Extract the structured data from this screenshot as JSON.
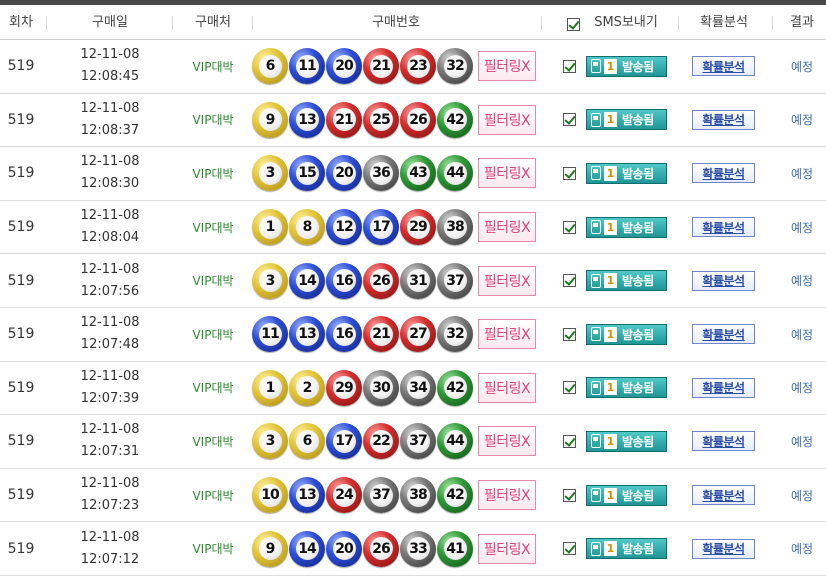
{
  "header": {
    "round": "회차",
    "purchase_date": "구매일",
    "store": "구매처",
    "numbers": "구매번호",
    "sms": "SMS보내기",
    "analysis": "확률분석",
    "result": "결과"
  },
  "colors": {
    "yellow": "#e3c43a",
    "blue": "#2e4fd6",
    "red": "#d62e2e",
    "gray": "#7a7a7a",
    "green": "#2f9a37",
    "store_text": "#2e8b2e",
    "filter_text": "#e0407a",
    "sent_button": "#1f9595"
  },
  "rows": [
    {
      "round": "519",
      "date": "12-11-08",
      "time": "12:08:45",
      "store": "VIP대박",
      "numbers": [
        {
          "n": "6",
          "c": "yellow"
        },
        {
          "n": "11",
          "c": "blue"
        },
        {
          "n": "20",
          "c": "blue"
        },
        {
          "n": "21",
          "c": "red"
        },
        {
          "n": "23",
          "c": "red"
        },
        {
          "n": "32",
          "c": "gray"
        }
      ],
      "filter": "필터링X",
      "sms_count": "1",
      "sms_status": "발송됨",
      "analysis": "확률분석",
      "result": "예정"
    },
    {
      "round": "519",
      "date": "12-11-08",
      "time": "12:08:37",
      "store": "VIP대박",
      "numbers": [
        {
          "n": "9",
          "c": "yellow"
        },
        {
          "n": "13",
          "c": "blue"
        },
        {
          "n": "21",
          "c": "red"
        },
        {
          "n": "25",
          "c": "red"
        },
        {
          "n": "26",
          "c": "red"
        },
        {
          "n": "42",
          "c": "green"
        }
      ],
      "filter": "필터링X",
      "sms_count": "1",
      "sms_status": "발송됨",
      "analysis": "확률분석",
      "result": "예정"
    },
    {
      "round": "519",
      "date": "12-11-08",
      "time": "12:08:30",
      "store": "VIP대박",
      "numbers": [
        {
          "n": "3",
          "c": "yellow"
        },
        {
          "n": "15",
          "c": "blue"
        },
        {
          "n": "20",
          "c": "blue"
        },
        {
          "n": "36",
          "c": "gray"
        },
        {
          "n": "43",
          "c": "green"
        },
        {
          "n": "44",
          "c": "green"
        }
      ],
      "filter": "필터링X",
      "sms_count": "1",
      "sms_status": "발송됨",
      "analysis": "확률분석",
      "result": "예정"
    },
    {
      "round": "519",
      "date": "12-11-08",
      "time": "12:08:04",
      "store": "VIP대박",
      "numbers": [
        {
          "n": "1",
          "c": "yellow"
        },
        {
          "n": "8",
          "c": "yellow"
        },
        {
          "n": "12",
          "c": "blue"
        },
        {
          "n": "17",
          "c": "blue"
        },
        {
          "n": "29",
          "c": "red"
        },
        {
          "n": "38",
          "c": "gray"
        }
      ],
      "filter": "필터링X",
      "sms_count": "1",
      "sms_status": "발송됨",
      "analysis": "확률분석",
      "result": "예정"
    },
    {
      "round": "519",
      "date": "12-11-08",
      "time": "12:07:56",
      "store": "VIP대박",
      "numbers": [
        {
          "n": "3",
          "c": "yellow"
        },
        {
          "n": "14",
          "c": "blue"
        },
        {
          "n": "16",
          "c": "blue"
        },
        {
          "n": "26",
          "c": "red"
        },
        {
          "n": "31",
          "c": "gray"
        },
        {
          "n": "37",
          "c": "gray"
        }
      ],
      "filter": "필터링X",
      "sms_count": "1",
      "sms_status": "발송됨",
      "analysis": "확률분석",
      "result": "예정"
    },
    {
      "round": "519",
      "date": "12-11-08",
      "time": "12:07:48",
      "store": "VIP대박",
      "numbers": [
        {
          "n": "11",
          "c": "blue"
        },
        {
          "n": "13",
          "c": "blue"
        },
        {
          "n": "16",
          "c": "blue"
        },
        {
          "n": "21",
          "c": "red"
        },
        {
          "n": "27",
          "c": "red"
        },
        {
          "n": "32",
          "c": "gray"
        }
      ],
      "filter": "필터링X",
      "sms_count": "1",
      "sms_status": "발송됨",
      "analysis": "확률분석",
      "result": "예정"
    },
    {
      "round": "519",
      "date": "12-11-08",
      "time": "12:07:39",
      "store": "VIP대박",
      "numbers": [
        {
          "n": "1",
          "c": "yellow"
        },
        {
          "n": "2",
          "c": "yellow"
        },
        {
          "n": "29",
          "c": "red"
        },
        {
          "n": "30",
          "c": "gray"
        },
        {
          "n": "34",
          "c": "gray"
        },
        {
          "n": "42",
          "c": "green"
        }
      ],
      "filter": "필터링X",
      "sms_count": "1",
      "sms_status": "발송됨",
      "analysis": "확률분석",
      "result": "예정"
    },
    {
      "round": "519",
      "date": "12-11-08",
      "time": "12:07:31",
      "store": "VIP대박",
      "numbers": [
        {
          "n": "3",
          "c": "yellow"
        },
        {
          "n": "6",
          "c": "yellow"
        },
        {
          "n": "17",
          "c": "blue"
        },
        {
          "n": "22",
          "c": "red"
        },
        {
          "n": "37",
          "c": "gray"
        },
        {
          "n": "44",
          "c": "green"
        }
      ],
      "filter": "필터링X",
      "sms_count": "1",
      "sms_status": "발송됨",
      "analysis": "확률분석",
      "result": "예정"
    },
    {
      "round": "519",
      "date": "12-11-08",
      "time": "12:07:23",
      "store": "VIP대박",
      "numbers": [
        {
          "n": "10",
          "c": "yellow"
        },
        {
          "n": "13",
          "c": "blue"
        },
        {
          "n": "24",
          "c": "red"
        },
        {
          "n": "37",
          "c": "gray"
        },
        {
          "n": "38",
          "c": "gray"
        },
        {
          "n": "42",
          "c": "green"
        }
      ],
      "filter": "필터링X",
      "sms_count": "1",
      "sms_status": "발송됨",
      "analysis": "확률분석",
      "result": "예정"
    },
    {
      "round": "519",
      "date": "12-11-08",
      "time": "12:07:12",
      "store": "VIP대박",
      "numbers": [
        {
          "n": "9",
          "c": "yellow"
        },
        {
          "n": "14",
          "c": "blue"
        },
        {
          "n": "20",
          "c": "blue"
        },
        {
          "n": "26",
          "c": "red"
        },
        {
          "n": "33",
          "c": "gray"
        },
        {
          "n": "41",
          "c": "green"
        }
      ],
      "filter": "필터링X",
      "sms_count": "1",
      "sms_status": "발송됨",
      "analysis": "확률분석",
      "result": "예정"
    }
  ]
}
